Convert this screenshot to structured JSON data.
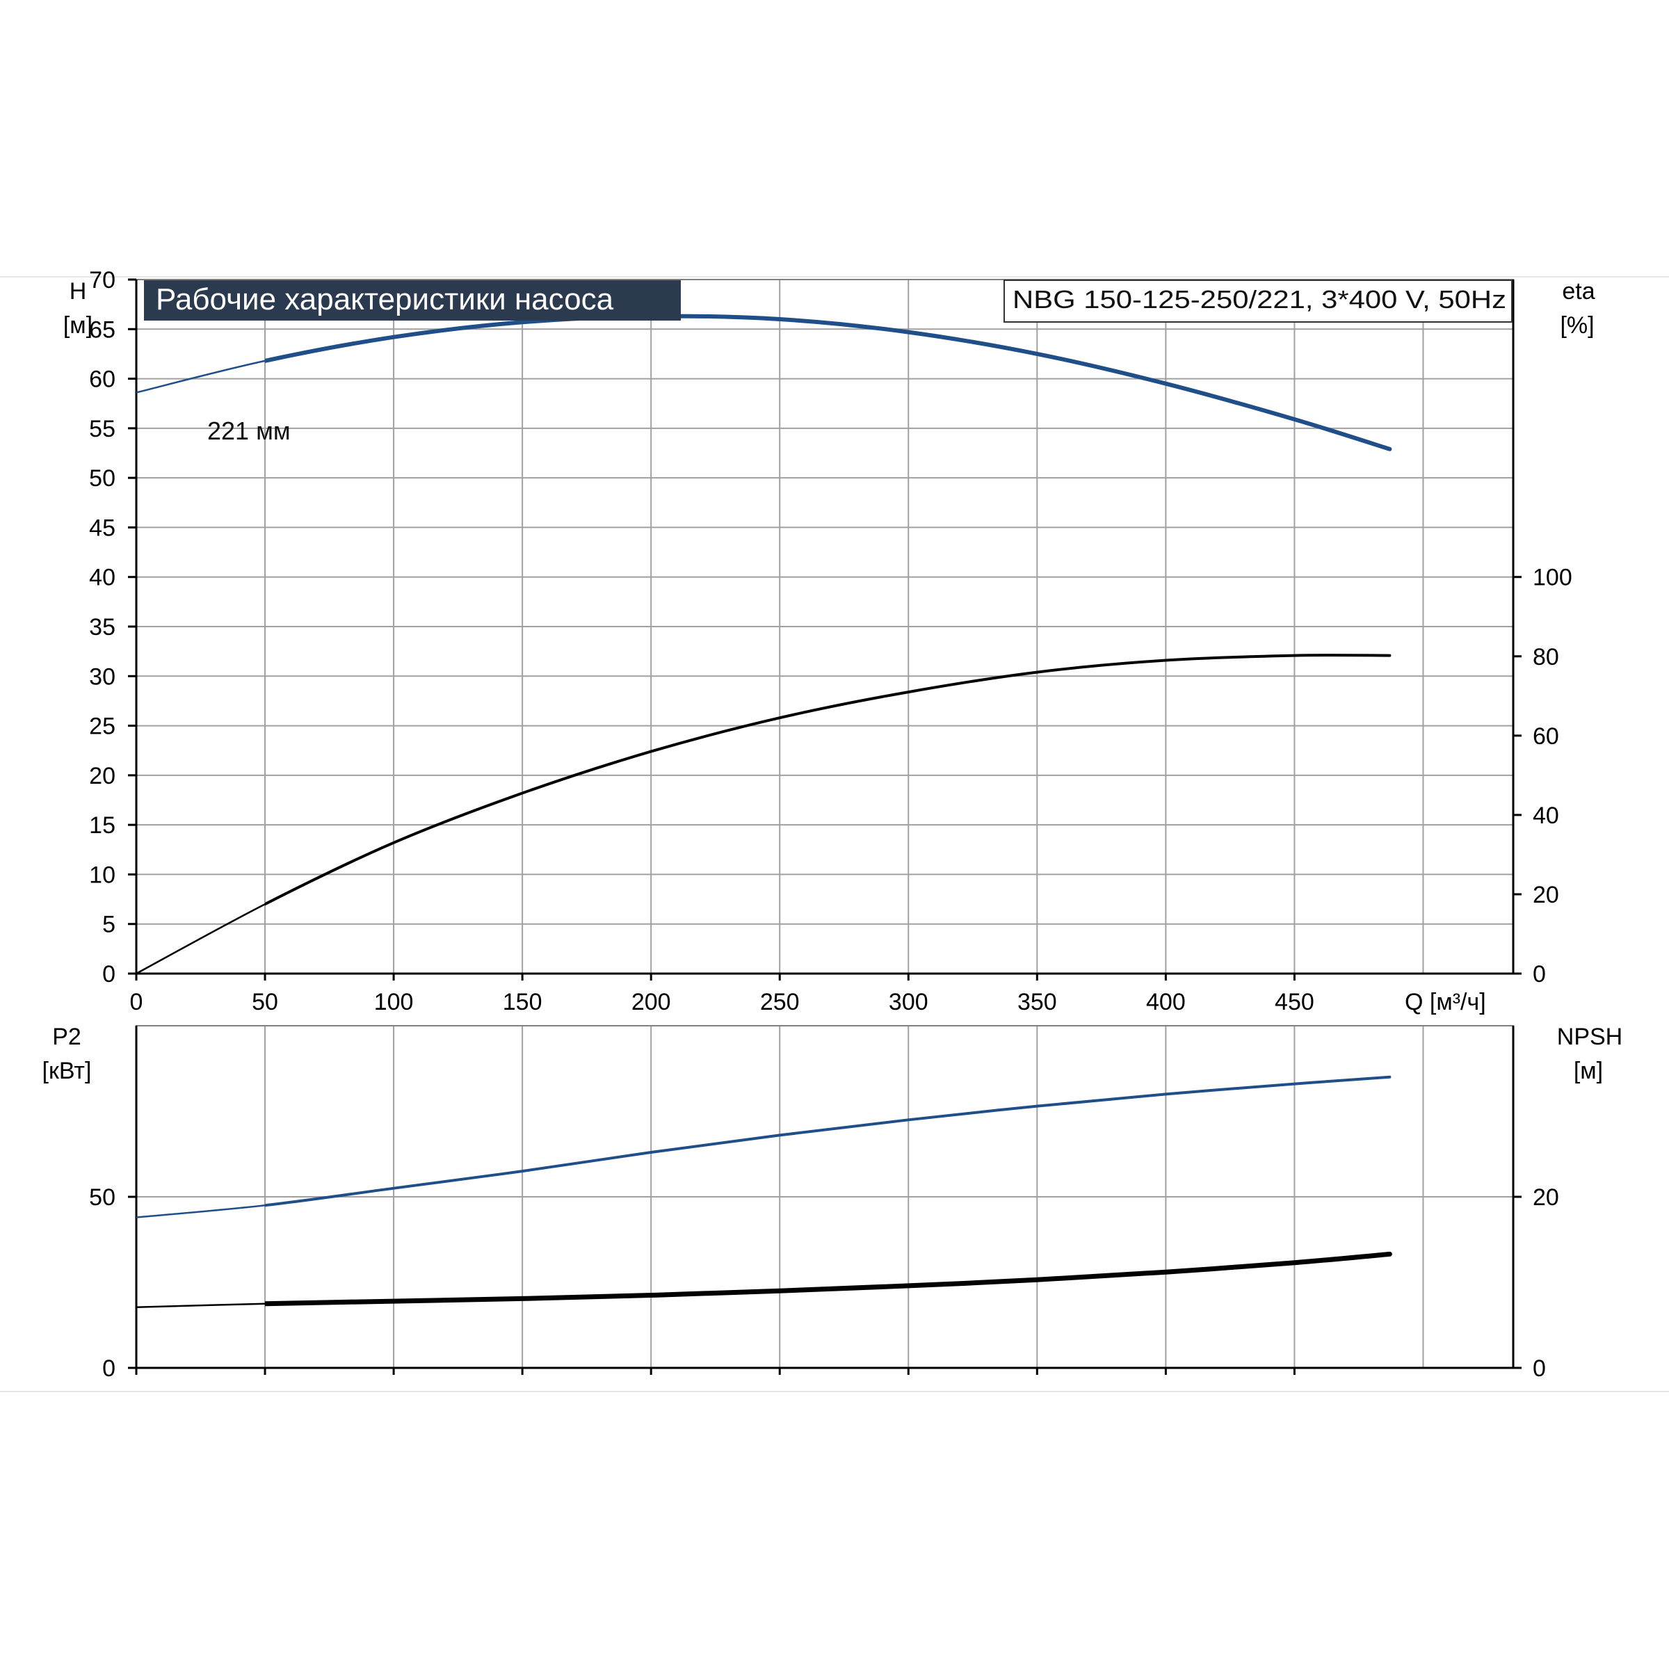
{
  "header": {
    "title": "Рабочие характеристики насоса",
    "model": "NBG 150-125-250/221, 3*400 V, 50Hz",
    "title_bg": "#2b3a4f",
    "curve_label": "221 мм"
  },
  "colors": {
    "blue": "#1f4e89",
    "black": "#000000",
    "grid": "#a0a0a0"
  },
  "chart_data": [
    {
      "type": "line",
      "xlabel": "Q [м³/ч]",
      "x_ticks": [
        "0",
        "50",
        "100",
        "150",
        "200",
        "250",
        "300",
        "350",
        "400",
        "450"
      ],
      "xlim": [
        0,
        535
      ],
      "ylabel_left": [
        "H",
        "[м]"
      ],
      "ylim_left": [
        0,
        70
      ],
      "y_ticks_left": [
        "0",
        "5",
        "10",
        "15",
        "20",
        "25",
        "30",
        "35",
        "40",
        "45",
        "50",
        "55",
        "60",
        "65",
        "70"
      ],
      "ylabel_right": [
        "eta",
        "[%]"
      ],
      "ylim_right": [
        0,
        175
      ],
      "y_ticks_right": [
        "0",
        "20",
        "40",
        "60",
        "80",
        "100"
      ],
      "grid": true,
      "series": [
        {
          "name": "221 мм",
          "axis": "left",
          "color": "#1f4e89",
          "x": [
            0,
            50,
            100,
            150,
            200,
            250,
            300,
            350,
            400,
            450,
            487
          ],
          "y": [
            58.6,
            61.8,
            64.2,
            65.7,
            66.3,
            66.0,
            64.7,
            62.5,
            59.5,
            55.9,
            52.9
          ]
        },
        {
          "axis": "right",
          "color": "#000000",
          "x": [
            0,
            50,
            100,
            150,
            200,
            250,
            300,
            350,
            400,
            450,
            487
          ],
          "y": [
            0,
            17.5,
            33,
            45.5,
            56,
            64.5,
            71,
            76,
            79,
            80.2,
            80.2
          ]
        }
      ]
    },
    {
      "type": "line",
      "xlim": [
        0,
        535
      ],
      "ylabel_left": [
        "P2",
        "[кВт]"
      ],
      "ylim_left": [
        0,
        100
      ],
      "y_ticks_left": [
        "0",
        "50"
      ],
      "ylabel_right": [
        "NPSH",
        "[м]"
      ],
      "ylim_right": [
        0,
        40
      ],
      "y_ticks_right": [
        "0",
        "20"
      ],
      "grid": true,
      "series": [
        {
          "axis": "left",
          "color": "#1f4e89",
          "x": [
            0,
            50,
            100,
            150,
            200,
            250,
            300,
            350,
            400,
            450,
            487
          ],
          "y": [
            44,
            47.5,
            52.5,
            57.5,
            63,
            68,
            72.5,
            76.5,
            80,
            83,
            85
          ]
        },
        {
          "axis": "right",
          "color": "#000000",
          "x": [
            0,
            50,
            100,
            150,
            200,
            250,
            300,
            350,
            400,
            450,
            487
          ],
          "y": [
            7.1,
            7.5,
            7.8,
            8.1,
            8.5,
            9.0,
            9.6,
            10.3,
            11.2,
            12.3,
            13.3
          ]
        }
      ]
    }
  ]
}
